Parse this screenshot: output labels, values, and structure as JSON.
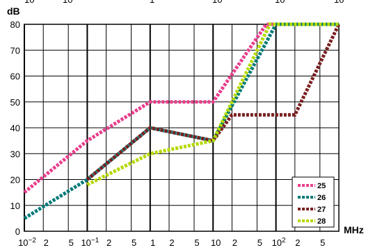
{
  "top_cut_labels": [
    "10",
    "10",
    "1",
    "10",
    "10",
    "10"
  ],
  "chart_data": {
    "type": "line",
    "title": "",
    "xlabel": "MHz",
    "ylabel": "dB",
    "x_scale": "log",
    "xlim": [
      0.01,
      1000
    ],
    "ylim": [
      0,
      80
    ],
    "y_ticks": [
      0,
      10,
      20,
      30,
      40,
      50,
      60,
      70,
      80
    ],
    "x_ticks": [
      {
        "value": 0.01,
        "base": "10",
        "exp": "−2"
      },
      {
        "value": 0.02,
        "base": "2",
        "exp": ""
      },
      {
        "value": 0.05,
        "base": "5",
        "exp": ""
      },
      {
        "value": 0.1,
        "base": "10",
        "exp": "−1"
      },
      {
        "value": 0.2,
        "base": "2",
        "exp": ""
      },
      {
        "value": 0.5,
        "base": "5",
        "exp": ""
      },
      {
        "value": 1,
        "base": "1",
        "exp": ""
      },
      {
        "value": 2,
        "base": "2",
        "exp": ""
      },
      {
        "value": 5,
        "base": "5",
        "exp": ""
      },
      {
        "value": 10,
        "base": "10",
        "exp": ""
      },
      {
        "value": 20,
        "base": "2",
        "exp": ""
      },
      {
        "value": 50,
        "base": "5",
        "exp": ""
      },
      {
        "value": 100,
        "base": "10",
        "exp": "2"
      },
      {
        "value": 200,
        "base": "2",
        "exp": ""
      },
      {
        "value": 500,
        "base": "5",
        "exp": ""
      }
    ],
    "grid": true,
    "legend_position": "bottom-right",
    "series": [
      {
        "name": "25",
        "color": "#e83e8c",
        "x": [
          0.01,
          0.1,
          1,
          10,
          70,
          1000
        ],
        "y": [
          15,
          35,
          50,
          50,
          80,
          80
        ]
      },
      {
        "name": "26",
        "color": "#007a78",
        "x": [
          0.01,
          0.1,
          1,
          10,
          100,
          1000
        ],
        "y": [
          5,
          20,
          40,
          35,
          80,
          80
        ]
      },
      {
        "name": "27",
        "color": "#7a1f1f",
        "x": [
          0.1,
          1,
          10,
          20,
          200,
          1000
        ],
        "y": [
          20,
          40,
          35,
          45,
          45,
          80
        ]
      },
      {
        "name": "28",
        "color": "#b5d900",
        "x": [
          0.1,
          1,
          10,
          80,
          1000
        ],
        "y": [
          18,
          30,
          35,
          80,
          80
        ]
      }
    ]
  }
}
